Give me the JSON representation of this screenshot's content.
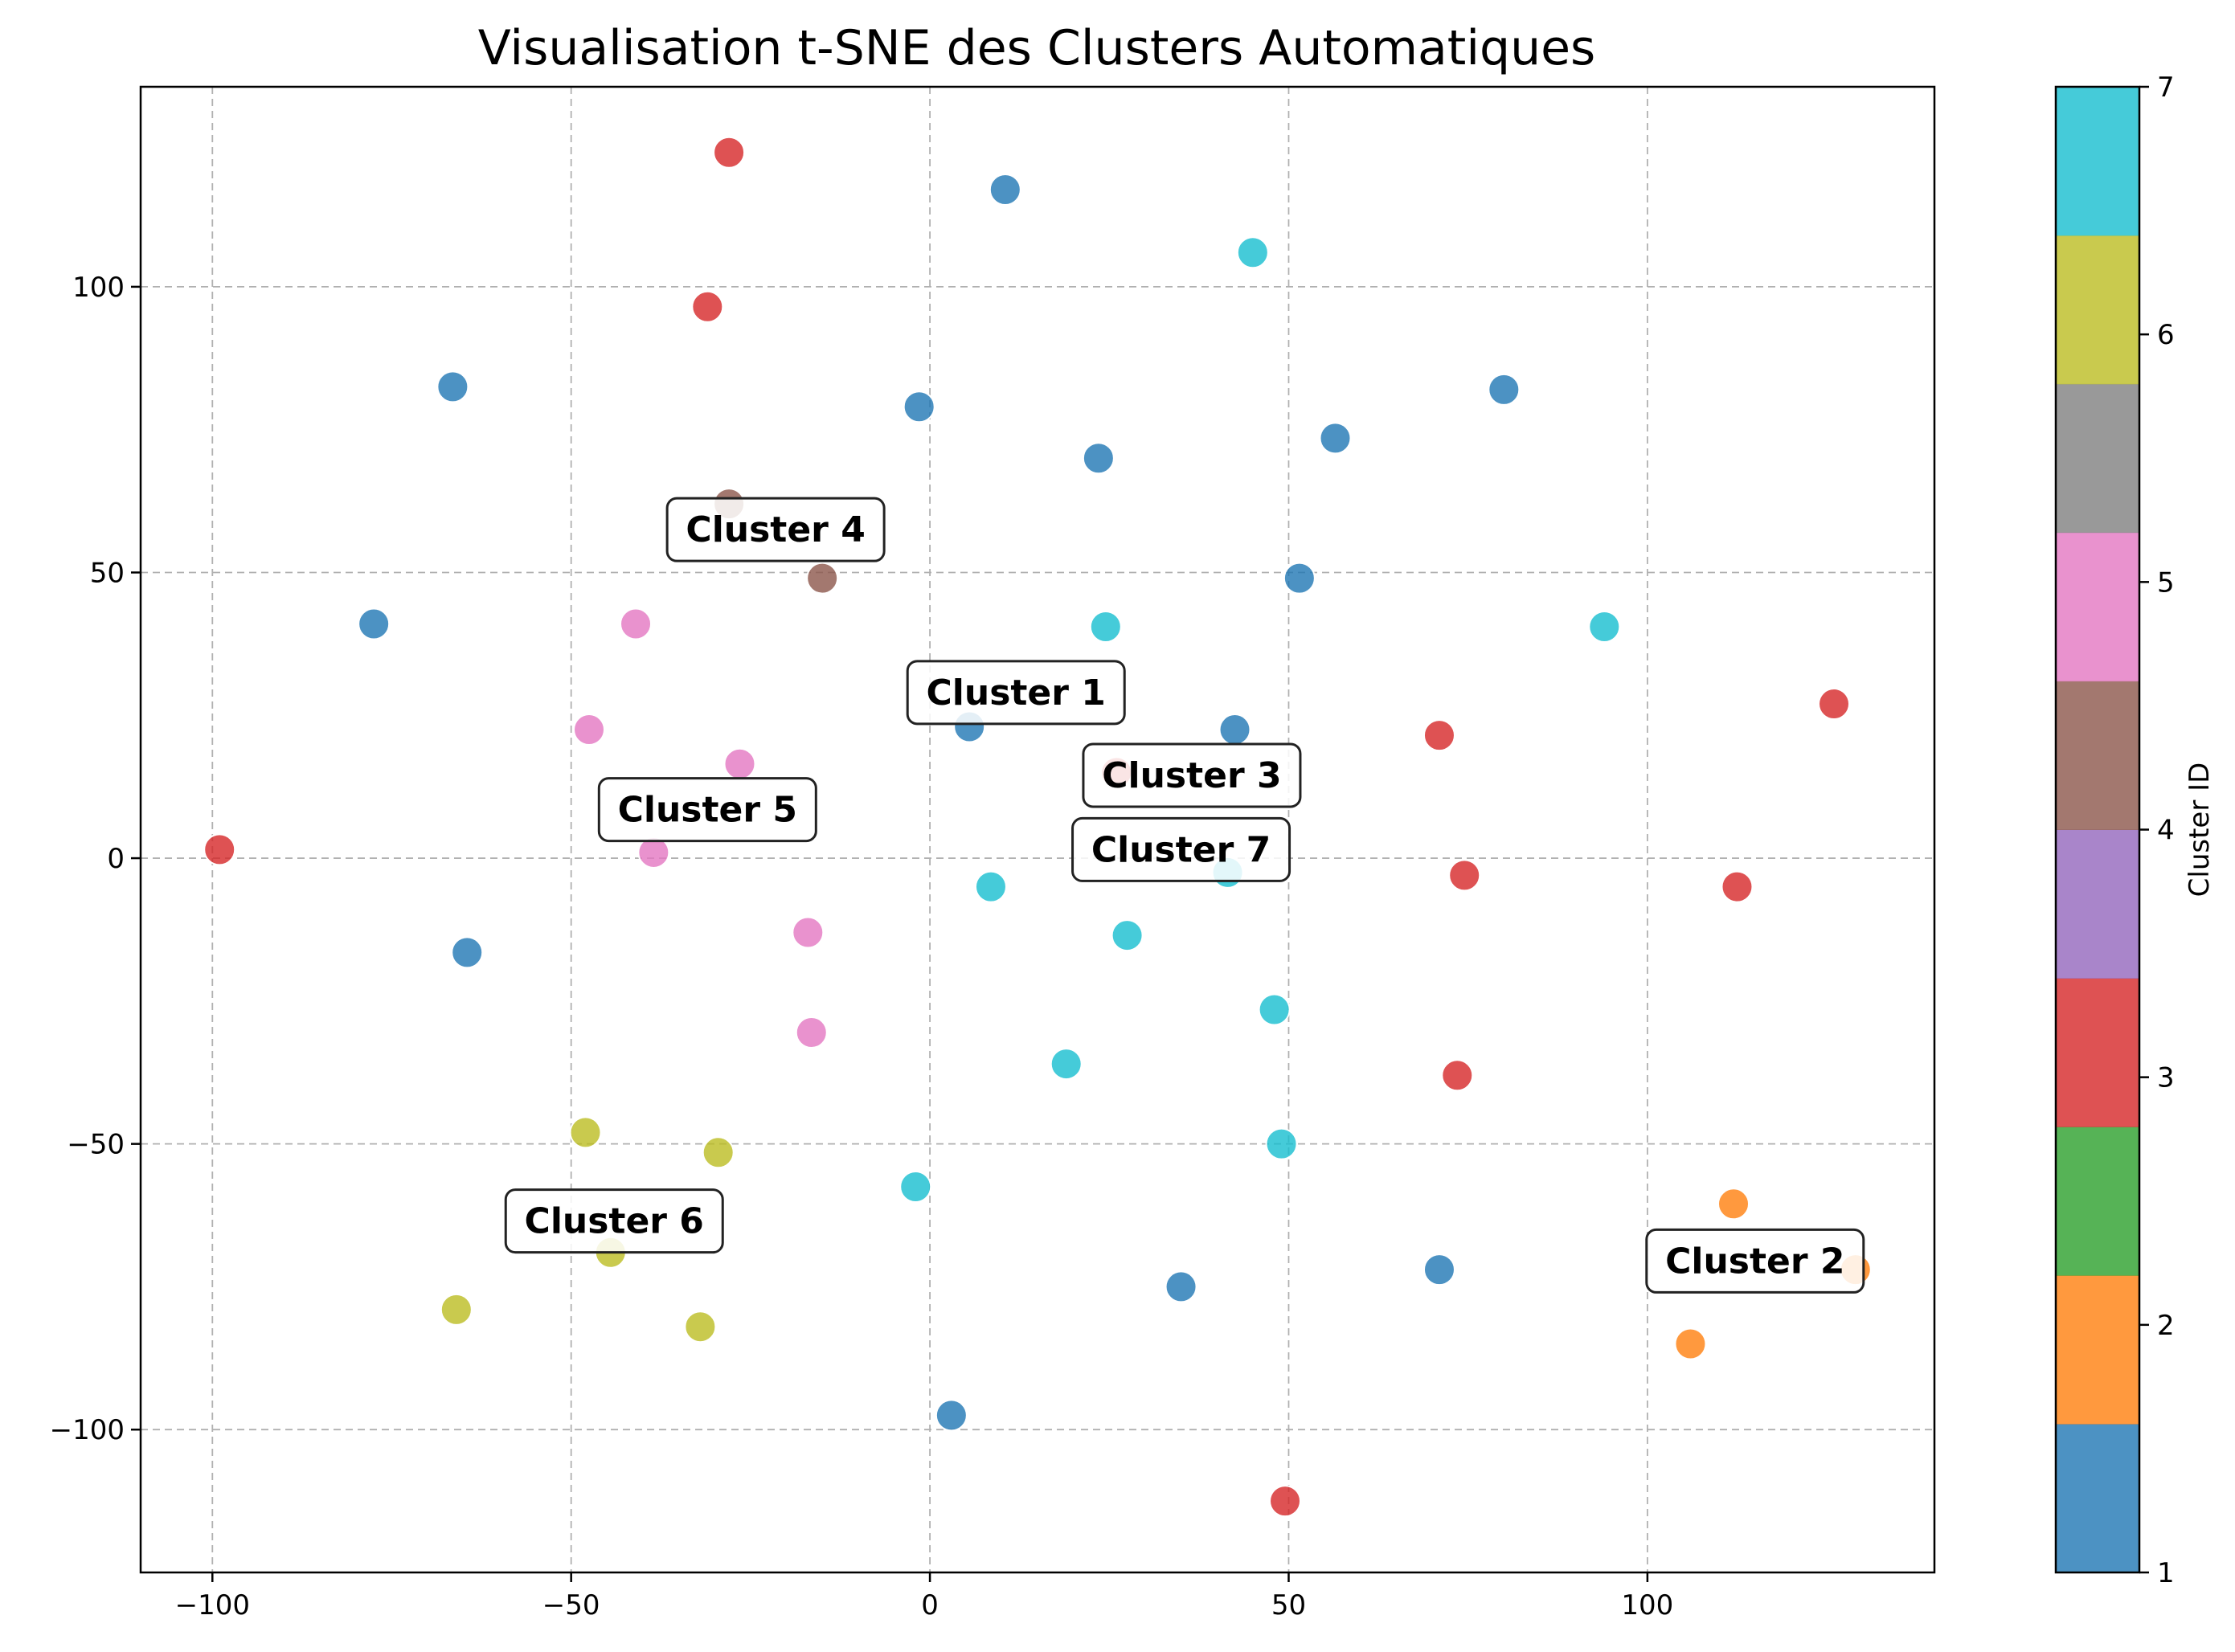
{
  "chart_data": {
    "type": "scatter",
    "title": "Visualisation t-SNE des Clusters Automatiques",
    "xlabel": "",
    "ylabel": "",
    "xlim": [
      -110,
      140
    ],
    "ylim": [
      -125,
      135
    ],
    "xticks": [
      -100,
      -50,
      0,
      50,
      100
    ],
    "yticks": [
      -100,
      -50,
      0,
      50,
      100
    ],
    "grid": true,
    "colorbar": {
      "label": "Cluster ID",
      "range": [
        1,
        7
      ],
      "ticks": [
        1,
        2,
        3,
        4,
        5,
        6,
        7
      ],
      "colors": [
        "#1f77b4",
        "#ff7f0e",
        "#2ca02c",
        "#d62728",
        "#9467bd",
        "#8c564b",
        "#e377c2",
        "#7f7f7f",
        "#bcbd22",
        "#17becf"
      ]
    },
    "cluster_colors": {
      "1": "#1f77b4",
      "2": "#ff7f0e",
      "3": "#d62728",
      "4": "#8c564b",
      "5": "#e377c2",
      "6": "#bcbd22",
      "7": "#17becf"
    },
    "points": [
      {
        "x": 10.5,
        "y": 117,
        "cluster": 1
      },
      {
        "x": -66.5,
        "y": 82.5,
        "cluster": 1
      },
      {
        "x": -1.5,
        "y": 79,
        "cluster": 1
      },
      {
        "x": 23.5,
        "y": 70,
        "cluster": 1
      },
      {
        "x": 56.5,
        "y": 73.5,
        "cluster": 1
      },
      {
        "x": 80,
        "y": 82,
        "cluster": 1
      },
      {
        "x": 51.5,
        "y": 49,
        "cluster": 1
      },
      {
        "x": -77.5,
        "y": 41,
        "cluster": 1
      },
      {
        "x": 5.5,
        "y": 23,
        "cluster": 1
      },
      {
        "x": 42.5,
        "y": 22.5,
        "cluster": 1
      },
      {
        "x": -64.5,
        "y": -16.5,
        "cluster": 1
      },
      {
        "x": 35,
        "y": -75,
        "cluster": 1
      },
      {
        "x": 71,
        "y": -72,
        "cluster": 1
      },
      {
        "x": 3,
        "y": -97.5,
        "cluster": 1
      },
      {
        "x": 112,
        "y": -60.5,
        "cluster": 2
      },
      {
        "x": 106,
        "y": -85,
        "cluster": 2
      },
      {
        "x": 129,
        "y": -72,
        "cluster": 2
      },
      {
        "x": -28,
        "y": 123.5,
        "cluster": 3
      },
      {
        "x": -31,
        "y": 96.5,
        "cluster": 3
      },
      {
        "x": -99,
        "y": 1.5,
        "cluster": 3
      },
      {
        "x": 71,
        "y": 21.5,
        "cluster": 3
      },
      {
        "x": 126,
        "y": 27,
        "cluster": 3
      },
      {
        "x": 74.5,
        "y": -3,
        "cluster": 3
      },
      {
        "x": 112.5,
        "y": -5,
        "cluster": 3
      },
      {
        "x": 73.5,
        "y": -38,
        "cluster": 3
      },
      {
        "x": 49.5,
        "y": -112.5,
        "cluster": 3
      },
      {
        "x": 26,
        "y": 15,
        "cluster": 3
      },
      {
        "x": -28,
        "y": 62,
        "cluster": 4
      },
      {
        "x": -15,
        "y": 49,
        "cluster": 4
      },
      {
        "x": -41,
        "y": 41,
        "cluster": 5
      },
      {
        "x": -47.5,
        "y": 22.5,
        "cluster": 5
      },
      {
        "x": -26.5,
        "y": 16.5,
        "cluster": 5
      },
      {
        "x": -38.5,
        "y": 1,
        "cluster": 5
      },
      {
        "x": -17,
        "y": -13,
        "cluster": 5
      },
      {
        "x": -16.5,
        "y": -30.5,
        "cluster": 5
      },
      {
        "x": -48,
        "y": -48,
        "cluster": 6
      },
      {
        "x": -29.5,
        "y": -51.5,
        "cluster": 6
      },
      {
        "x": -44.5,
        "y": -69,
        "cluster": 6
      },
      {
        "x": -66,
        "y": -79,
        "cluster": 6
      },
      {
        "x": -32,
        "y": -82,
        "cluster": 6
      },
      {
        "x": 45,
        "y": 106,
        "cluster": 7
      },
      {
        "x": 24.5,
        "y": 40.5,
        "cluster": 7
      },
      {
        "x": 94,
        "y": 40.5,
        "cluster": 7
      },
      {
        "x": 41.5,
        "y": -2.5,
        "cluster": 7
      },
      {
        "x": 8.5,
        "y": -5,
        "cluster": 7
      },
      {
        "x": 27.5,
        "y": -13.5,
        "cluster": 7
      },
      {
        "x": 48,
        "y": -26.5,
        "cluster": 7
      },
      {
        "x": 19,
        "y": -36,
        "cluster": 7
      },
      {
        "x": 49,
        "y": -50,
        "cluster": 7
      },
      {
        "x": -2,
        "y": -57.5,
        "cluster": 7
      }
    ],
    "annotations": [
      {
        "text": "Cluster 1",
        "x": 12,
        "y": 29
      },
      {
        "text": "Cluster 2",
        "x": 115,
        "y": -70.5
      },
      {
        "text": "Cluster 3",
        "x": 36.5,
        "y": 14.5
      },
      {
        "text": "Cluster 4",
        "x": -21.5,
        "y": 57.5
      },
      {
        "x": -31,
        "y": 8.5,
        "text": "Cluster 5"
      },
      {
        "text": "Cluster 6",
        "x": -44,
        "y": -63.5
      },
      {
        "text": "Cluster 7",
        "x": 35,
        "y": 1.5
      }
    ]
  }
}
